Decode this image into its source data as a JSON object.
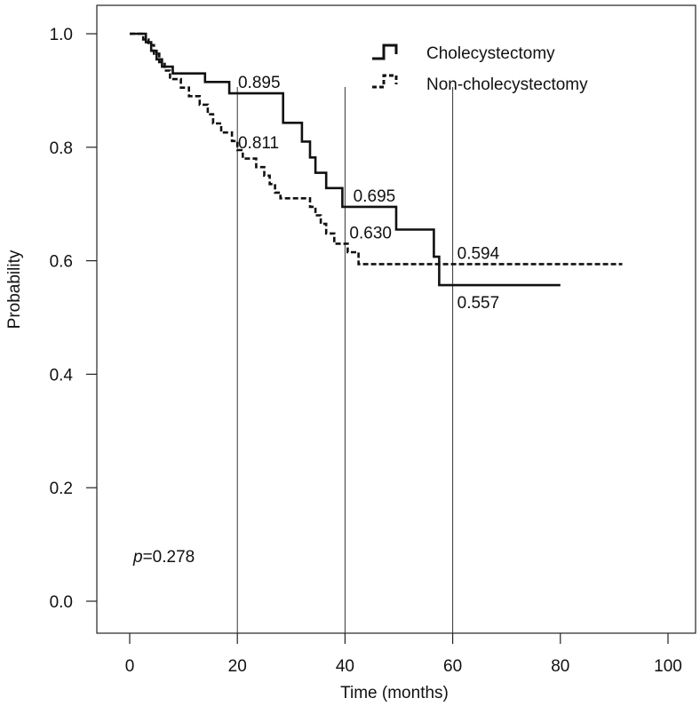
{
  "chart_data": {
    "type": "line",
    "subtype": "kaplan-meier step",
    "xlabel": "Time (months)",
    "ylabel": "Probability",
    "xlim": [
      0,
      100
    ],
    "ylim": [
      0,
      1
    ],
    "xticks": [
      0,
      20,
      40,
      60,
      80,
      100
    ],
    "yticks": [
      0.0,
      0.2,
      0.4,
      0.6,
      0.8,
      1.0
    ],
    "xtick_labels": [
      "0",
      "20",
      "40",
      "60",
      "80",
      "100"
    ],
    "ytick_labels": [
      "0.0",
      "0.2",
      "0.4",
      "0.6",
      "0.8",
      "1.0"
    ],
    "grid": false,
    "legend_position": "top-right",
    "series": [
      {
        "name": "Cholecystectomy",
        "line_style": "solid",
        "color": "#111111",
        "points": [
          [
            0,
            1.0
          ],
          [
            3,
            1.0
          ],
          [
            3,
            0.985
          ],
          [
            4,
            0.985
          ],
          [
            4,
            0.97
          ],
          [
            5,
            0.97
          ],
          [
            5,
            0.955
          ],
          [
            6,
            0.955
          ],
          [
            6,
            0.942
          ],
          [
            8,
            0.942
          ],
          [
            8,
            0.93
          ],
          [
            14,
            0.93
          ],
          [
            14,
            0.915
          ],
          [
            18.5,
            0.915
          ],
          [
            18.5,
            0.895
          ],
          [
            28.5,
            0.895
          ],
          [
            28.5,
            0.843
          ],
          [
            32,
            0.843
          ],
          [
            32,
            0.81
          ],
          [
            33.5,
            0.81
          ],
          [
            33.5,
            0.782
          ],
          [
            34.5,
            0.782
          ],
          [
            34.5,
            0.755
          ],
          [
            36.5,
            0.755
          ],
          [
            36.5,
            0.728
          ],
          [
            39.5,
            0.728
          ],
          [
            39.5,
            0.695
          ],
          [
            49.5,
            0.695
          ],
          [
            49.5,
            0.655
          ],
          [
            56.5,
            0.655
          ],
          [
            56.5,
            0.607
          ],
          [
            57.5,
            0.607
          ],
          [
            57.5,
            0.557
          ],
          [
            80,
            0.557
          ]
        ]
      },
      {
        "name": "Non-cholecystectomy",
        "line_style": "dashed",
        "color": "#111111",
        "points": [
          [
            0,
            1.0
          ],
          [
            2.5,
            1.0
          ],
          [
            2.5,
            0.99
          ],
          [
            3.5,
            0.99
          ],
          [
            3.5,
            0.98
          ],
          [
            4.5,
            0.98
          ],
          [
            4.5,
            0.965
          ],
          [
            5.5,
            0.965
          ],
          [
            5.5,
            0.95
          ],
          [
            6.5,
            0.95
          ],
          [
            6.5,
            0.935
          ],
          [
            7.5,
            0.935
          ],
          [
            7.5,
            0.92
          ],
          [
            9.5,
            0.92
          ],
          [
            9.5,
            0.905
          ],
          [
            11,
            0.905
          ],
          [
            11,
            0.89
          ],
          [
            13,
            0.89
          ],
          [
            13,
            0.875
          ],
          [
            14.5,
            0.875
          ],
          [
            14.5,
            0.858
          ],
          [
            15.5,
            0.858
          ],
          [
            15.5,
            0.842
          ],
          [
            17,
            0.842
          ],
          [
            17,
            0.826
          ],
          [
            19,
            0.826
          ],
          [
            19,
            0.811
          ],
          [
            20,
            0.811
          ],
          [
            20,
            0.795
          ],
          [
            21,
            0.795
          ],
          [
            21,
            0.78
          ],
          [
            23.5,
            0.78
          ],
          [
            23.5,
            0.765
          ],
          [
            25,
            0.765
          ],
          [
            25,
            0.75
          ],
          [
            26,
            0.75
          ],
          [
            26,
            0.735
          ],
          [
            27,
            0.735
          ],
          [
            27,
            0.72
          ],
          [
            28,
            0.72
          ],
          [
            28,
            0.71
          ],
          [
            33.5,
            0.71
          ],
          [
            33.5,
            0.695
          ],
          [
            34.5,
            0.695
          ],
          [
            34.5,
            0.68
          ],
          [
            35.5,
            0.68
          ],
          [
            35.5,
            0.665
          ],
          [
            36.5,
            0.665
          ],
          [
            36.5,
            0.648
          ],
          [
            38,
            0.648
          ],
          [
            38,
            0.63
          ],
          [
            40.5,
            0.63
          ],
          [
            40.5,
            0.615
          ],
          [
            42.5,
            0.615
          ],
          [
            42.5,
            0.594
          ],
          [
            91.5,
            0.594
          ]
        ]
      }
    ],
    "reference_lines_x": [
      20,
      40,
      60
    ],
    "annotations": [
      {
        "text": "0.895",
        "x": 19.8,
        "y": 0.895,
        "anchor": "bottom-left"
      },
      {
        "text": "0.811",
        "x": 19.8,
        "y": 0.811,
        "anchor": "left"
      },
      {
        "text": "0.695",
        "x": 41.2,
        "y": 0.695,
        "anchor": "bottom-left"
      },
      {
        "text": "0.630",
        "x": 40.5,
        "y": 0.63,
        "anchor": "bottom-left"
      },
      {
        "text": "0.594",
        "x": 60.5,
        "y": 0.594,
        "anchor": "bottom-left"
      },
      {
        "text": "0.557",
        "x": 60.5,
        "y": 0.557,
        "anchor": "top-left"
      }
    ],
    "p_value": {
      "label": "p",
      "value": "=0.278",
      "x": 0.5,
      "y": 0.078
    }
  }
}
